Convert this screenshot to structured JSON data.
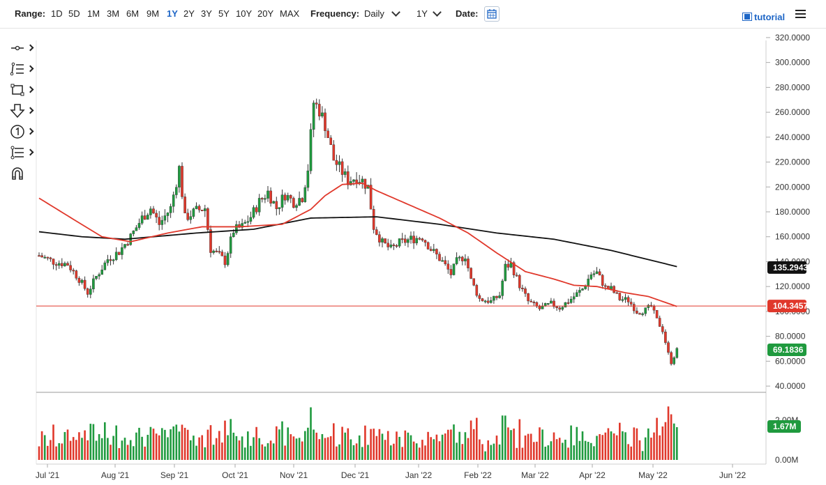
{
  "toolbar": {
    "range_label": "Range:",
    "ranges": [
      "1D",
      "5D",
      "1M",
      "3M",
      "6M",
      "9M",
      "1Y",
      "2Y",
      "3Y",
      "5Y",
      "10Y",
      "20Y",
      "MAX"
    ],
    "active_range": "1Y",
    "frequency_label": "Frequency:",
    "frequency_value": "Daily",
    "period_value": "1Y",
    "date_label": "Date:",
    "tutorial_label": "tutorial"
  },
  "colors": {
    "up": "#1f9a3e",
    "down": "#e0382b",
    "ma_fast": "#e0382b",
    "ma_slow": "#111111",
    "accent": "#1e66c6"
  },
  "chart_data": {
    "type": "candlestick",
    "price_axis": {
      "ylim": [
        35,
        325
      ],
      "ticks": [
        "320.0000",
        "300.0000",
        "280.0000",
        "260.0000",
        "240.0000",
        "220.0000",
        "200.0000",
        "180.0000",
        "160.0000",
        "140.0000",
        "120.0000",
        "100.0000",
        "80.0000",
        "60.0000",
        "40.0000"
      ]
    },
    "volume_axis": {
      "ticks": [
        "2.00M",
        "0.00M"
      ]
    },
    "x_labels": [
      "Jul '21",
      "Aug '21",
      "Sep '21",
      "Oct '21",
      "Nov '21",
      "Dec '21",
      "Jan '22",
      "Feb '22",
      "Mar '22",
      "Apr '22",
      "May '22",
      "Jun '22"
    ],
    "markers": {
      "slow_ma": "135.2943",
      "horizontal_line": "104.3457",
      "last_price": "69.1836",
      "last_volume": "1.67M"
    },
    "price_path": [
      [
        0,
        145
      ],
      [
        5,
        140
      ],
      [
        10,
        138
      ],
      [
        14,
        126
      ],
      [
        17,
        115
      ],
      [
        20,
        128
      ],
      [
        24,
        142
      ],
      [
        28,
        148
      ],
      [
        32,
        160
      ],
      [
        36,
        175
      ],
      [
        39,
        183
      ],
      [
        42,
        170
      ],
      [
        46,
        183
      ],
      [
        49,
        215
      ],
      [
        51,
        175
      ],
      [
        55,
        181
      ],
      [
        58,
        183
      ],
      [
        60,
        150
      ],
      [
        63,
        145
      ],
      [
        65,
        140
      ],
      [
        68,
        165
      ],
      [
        71,
        168
      ],
      [
        74,
        176
      ],
      [
        77,
        188
      ],
      [
        80,
        196
      ],
      [
        83,
        183
      ],
      [
        86,
        194
      ],
      [
        89,
        188
      ],
      [
        92,
        192
      ],
      [
        94,
        215
      ],
      [
        96,
        268
      ],
      [
        98,
        262
      ],
      [
        100,
        250
      ],
      [
        103,
        222
      ],
      [
        106,
        212
      ],
      [
        108,
        205
      ],
      [
        111,
        208
      ],
      [
        113,
        205
      ],
      [
        115,
        200
      ],
      [
        117,
        168
      ],
      [
        120,
        155
      ],
      [
        123,
        150
      ],
      [
        126,
        155
      ],
      [
        130,
        158
      ],
      [
        134,
        160
      ],
      [
        137,
        150
      ],
      [
        141,
        140
      ],
      [
        144,
        130
      ],
      [
        146,
        140
      ],
      [
        149,
        145
      ],
      [
        151,
        125
      ],
      [
        154,
        110
      ],
      [
        158,
        108
      ],
      [
        161,
        113
      ],
      [
        163,
        136
      ],
      [
        165,
        138
      ],
      [
        168,
        121
      ],
      [
        171,
        108
      ],
      [
        175,
        102
      ],
      [
        179,
        106
      ],
      [
        182,
        103
      ],
      [
        186,
        110
      ],
      [
        190,
        118
      ],
      [
        193,
        130
      ],
      [
        195,
        131
      ],
      [
        198,
        119
      ],
      [
        200,
        118
      ],
      [
        203,
        110
      ],
      [
        206,
        109
      ],
      [
        209,
        100
      ],
      [
        212,
        101
      ],
      [
        214,
        104
      ],
      [
        216,
        93
      ],
      [
        218,
        85
      ],
      [
        220,
        66
      ],
      [
        221,
        59
      ],
      [
        223,
        69
      ]
    ],
    "slow_ma_path": [
      [
        0,
        164
      ],
      [
        15,
        160
      ],
      [
        30,
        158
      ],
      [
        55,
        163
      ],
      [
        75,
        166
      ],
      [
        95,
        175
      ],
      [
        118,
        176
      ],
      [
        140,
        170
      ],
      [
        160,
        163
      ],
      [
        180,
        158
      ],
      [
        200,
        149
      ],
      [
        223,
        136
      ]
    ],
    "fast_ma_path": [
      [
        0,
        191
      ],
      [
        12,
        174
      ],
      [
        22,
        160
      ],
      [
        32,
        156
      ],
      [
        45,
        163
      ],
      [
        57,
        168
      ],
      [
        70,
        168
      ],
      [
        85,
        170
      ],
      [
        95,
        182
      ],
      [
        100,
        193
      ],
      [
        106,
        202
      ],
      [
        113,
        203
      ],
      [
        118,
        197
      ],
      [
        130,
        185
      ],
      [
        140,
        175
      ],
      [
        150,
        163
      ],
      [
        160,
        147
      ],
      [
        170,
        132
      ],
      [
        180,
        126
      ],
      [
        187,
        121
      ],
      [
        195,
        120
      ],
      [
        205,
        115
      ],
      [
        213,
        112
      ],
      [
        223,
        104
      ]
    ],
    "n_days": 224
  }
}
